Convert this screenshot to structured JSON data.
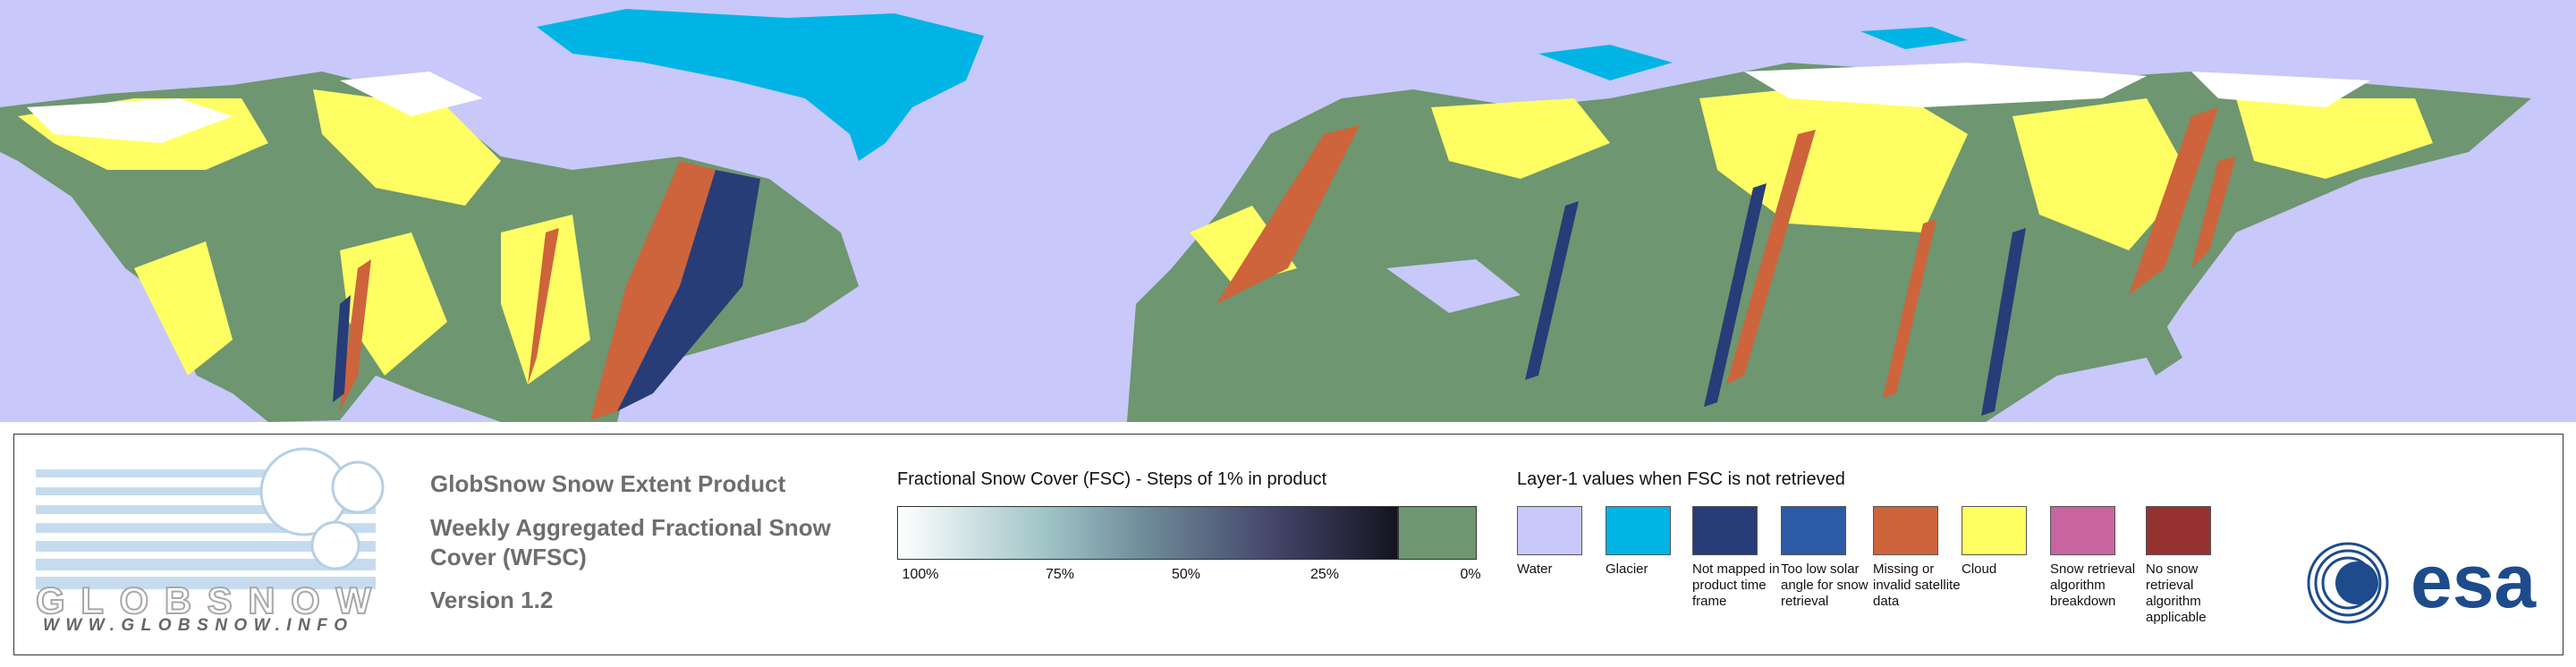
{
  "logo": {
    "name": "GLOBSNOW",
    "url": "WWW.GLOBSNOW.INFO"
  },
  "header": {
    "product": "GlobSnow Snow Extent Product",
    "title": "Weekly Aggregated Fractional Snow Cover (WFSC)",
    "version": "Version 1.2"
  },
  "colorbar": {
    "title": "Fractional Snow Cover (FSC) - Steps of 1% in product",
    "ticks": [
      "100%",
      "75%",
      "50%",
      "25%",
      "0%"
    ]
  },
  "legend": {
    "title": "Layer-1 values when FSC is not retrieved",
    "items": [
      {
        "label": "Water",
        "color": "#c8c8fa"
      },
      {
        "label": "Glacier",
        "color": "#00b4e6"
      },
      {
        "label": "Not mapped in product time frame",
        "color": "#283c78"
      },
      {
        "label": "Too low solar angle for snow retrieval",
        "color": "#2d5aa5"
      },
      {
        "label": "Missing or invalid satellite data",
        "color": "#cd643c"
      },
      {
        "label": "Cloud",
        "color": "#ffff64"
      },
      {
        "label": "Snow retrieval algorithm breakdown",
        "color": "#c864a0"
      },
      {
        "label": "No snow retrieval algorithm applicable",
        "color": "#963232"
      }
    ]
  },
  "esa": "esa"
}
